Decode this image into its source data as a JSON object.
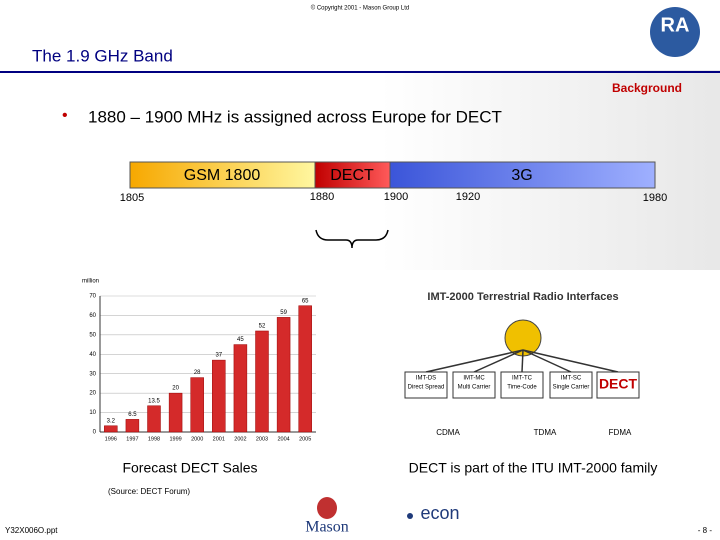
{
  "header": {
    "copyright": "© Copyright 2001 - Mason Group Ltd",
    "title": "The 1.9 GHz Band",
    "section": "Background",
    "logo": "RA"
  },
  "bullet": "1880 – 1900 MHz is assigned across Europe for DECT",
  "band": {
    "segments": [
      "GSM 1800",
      "DECT",
      "3G"
    ],
    "frequencies": [
      "1805",
      "1880",
      "1900",
      "1920",
      "1980"
    ]
  },
  "chart": {
    "type": "bar",
    "unit_label": "million",
    "categories": [
      "1996",
      "1997",
      "1998",
      "1999",
      "2000",
      "2001",
      "2002",
      "2003",
      "2004",
      "2005"
    ],
    "values": [
      3.2,
      6.5,
      13.5,
      20,
      28,
      37,
      45,
      52,
      59,
      65
    ],
    "color": "#d42a2a",
    "ylim": [
      0,
      70
    ],
    "yticks": [
      0,
      10,
      20,
      30,
      40,
      50,
      60,
      70
    ],
    "grid": true
  },
  "chart_caption": "Forecast DECT Sales",
  "diagram": {
    "title": "IMT-2000 Terrestrial Radio Interfaces",
    "boxes": [
      {
        "code": "IMT-DS",
        "desc": "Direct Spread"
      },
      {
        "code": "IMT-MC",
        "desc": "Multi Carrier"
      },
      {
        "code": "IMT-TC",
        "desc": "Time-Code"
      },
      {
        "code": "IMT-SC",
        "desc": "Single Carrier"
      },
      {
        "code": "DECT",
        "desc": ""
      }
    ],
    "groups": [
      "CDMA",
      "TDMA",
      "FDMA"
    ]
  },
  "diagram_caption": "DECT is part of the ITU IMT-2000 family",
  "source": "(Source: DECT Forum)",
  "footer": {
    "file": "Y32X006O.ppt",
    "brand1": "Mason",
    "brand2": "econ",
    "page": "- 8 -"
  }
}
